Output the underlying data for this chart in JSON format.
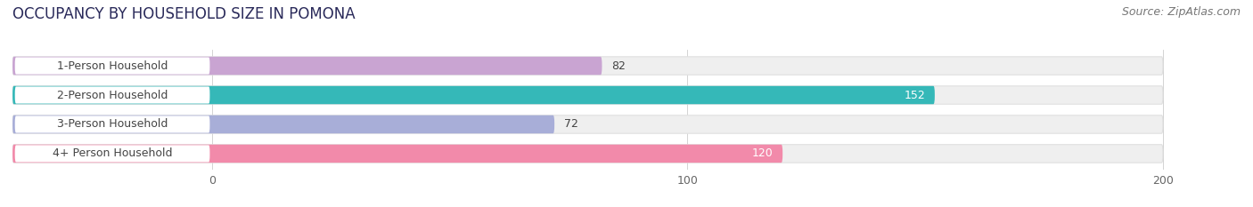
{
  "title": "OCCUPANCY BY HOUSEHOLD SIZE IN POMONA",
  "source": "Source: ZipAtlas.com",
  "categories": [
    "1-Person Household",
    "2-Person Household",
    "3-Person Household",
    "4+ Person Household"
  ],
  "values": [
    82,
    152,
    72,
    120
  ],
  "bar_colors": [
    "#c9a4d2",
    "#35b8b8",
    "#a8aed8",
    "#f28aaa"
  ],
  "bg_bar_color": "#efefef",
  "bg_bar_border": "#e0e0e0",
  "max_value": 200,
  "xticks": [
    0,
    100,
    200
  ],
  "label_bg_color": "#ffffff",
  "label_text_color": "#444444",
  "title_fontsize": 12,
  "source_fontsize": 9,
  "bar_height": 0.62,
  "fig_bg_color": "#ffffff",
  "value_label_fontsize": 9
}
